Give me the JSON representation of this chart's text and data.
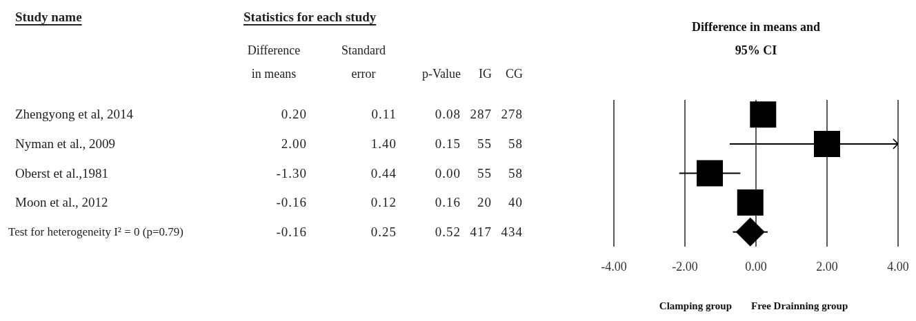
{
  "chart_data": [
    {
      "type": "other",
      "title": "Statistics for each study",
      "xlabel": "Study name",
      "categories": [
        "Zhengyong et al, 2014",
        "Nyman et al., 2009",
        "Oberst et al.,1981",
        "Moon et al., 2012",
        "Test for heterogeneity I² = 0 (p=0.79)"
      ],
      "data_labels": true,
      "series": [
        {
          "name": "Difference\nin means",
          "values": [
            0.2,
            2,
            -1.3,
            -0.16,
            -0.16
          ],
          "value_labels": [
            "0.20",
            "2.00",
            "-1.30",
            "-0.16",
            "-0.16"
          ]
        },
        {
          "name": "Standard\nerror",
          "values": [
            0.11,
            1.4,
            0.44,
            0.12,
            0.25
          ],
          "value_labels": [
            "0.11",
            "1.40",
            "0.44",
            "0.12",
            "0.25"
          ]
        },
        {
          "name": "p-Value",
          "values": [
            0.08,
            0.15,
            0.0,
            0.16,
            0.52
          ],
          "value_labels": [
            "0.08",
            "0.15",
            "0.00",
            "0.16",
            "0.52"
          ]
        },
        {
          "name": "IG",
          "values": [
            287,
            55,
            55,
            20,
            417
          ]
        },
        {
          "name": "CG",
          "values": [
            278,
            58,
            58,
            40,
            434
          ]
        }
      ]
    },
    {
      "type": "scatter",
      "title": "Difference in means and 95% CI",
      "orientation": "horizontal",
      "grid": "x",
      "series": [
        {
          "color": "#000000",
          "marker": "square",
          "values": [
            0.2,
            2,
            -1.3,
            -0.16,
            null
          ],
          "errors": [
            null,
            [
              -0.74,
              4.0
            ],
            [
              -2.16,
              -0.44
            ],
            null,
            null
          ]
        },
        {
          "color": "#000000",
          "marker": "diamond",
          "values": [
            null,
            null,
            null,
            null,
            -0.16
          ],
          "errors": [
            null,
            null,
            null,
            null,
            [
              -0.65,
              0.33
            ]
          ]
        }
      ],
      "xlim": [
        -4,
        4
      ],
      "xticks": [
        {
          "value": -4,
          "label": "-4.00"
        },
        {
          "value": -2,
          "label": "-2.00"
        },
        {
          "value": 0,
          "label": "0.00"
        },
        {
          "value": 2,
          "label": "2.00"
        },
        {
          "value": 4,
          "label": "4.00"
        }
      ],
      "annotations": [
        "Clamping group",
        "Free Drainning group"
      ]
    }
  ]
}
